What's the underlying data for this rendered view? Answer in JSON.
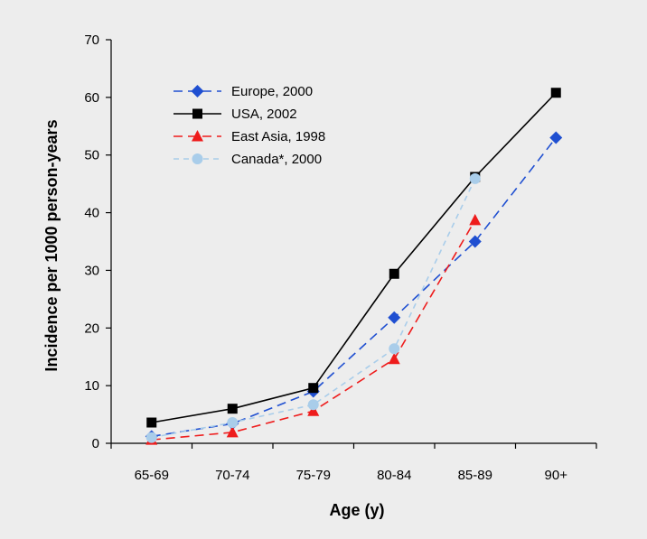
{
  "chart_data": {
    "type": "line",
    "title": "",
    "xlabel": "Age (y)",
    "ylabel": "Incidence per 1000 person-years",
    "categories": [
      "65-69",
      "70-74",
      "75-79",
      "80-84",
      "85-89",
      "90+"
    ],
    "ylim": [
      0,
      70
    ],
    "yticks": [
      0,
      10,
      20,
      30,
      40,
      50,
      60,
      70
    ],
    "grid": false,
    "legend_position": "top-left",
    "series": [
      {
        "name": "Europe, 2000",
        "values": [
          1.2,
          3.4,
          9.0,
          21.8,
          35.0,
          53.0
        ],
        "color": "#1f4fd1",
        "marker": "diamond",
        "line": "dashed"
      },
      {
        "name": "USA, 2002",
        "values": [
          3.6,
          6.0,
          9.6,
          29.4,
          46.2,
          60.8
        ],
        "color": "#000000",
        "marker": "square",
        "line": "solid"
      },
      {
        "name": "East Asia, 1998",
        "values": [
          0.6,
          1.9,
          5.6,
          14.6,
          38.7,
          null
        ],
        "color": "#ee1c1c",
        "marker": "triangle",
        "line": "dashed"
      },
      {
        "name": "Canada*, 2000",
        "values": [
          1.0,
          3.6,
          6.7,
          16.4,
          45.9,
          null
        ],
        "color": "#a9cdea",
        "marker": "circle",
        "line": "dashed"
      }
    ]
  }
}
